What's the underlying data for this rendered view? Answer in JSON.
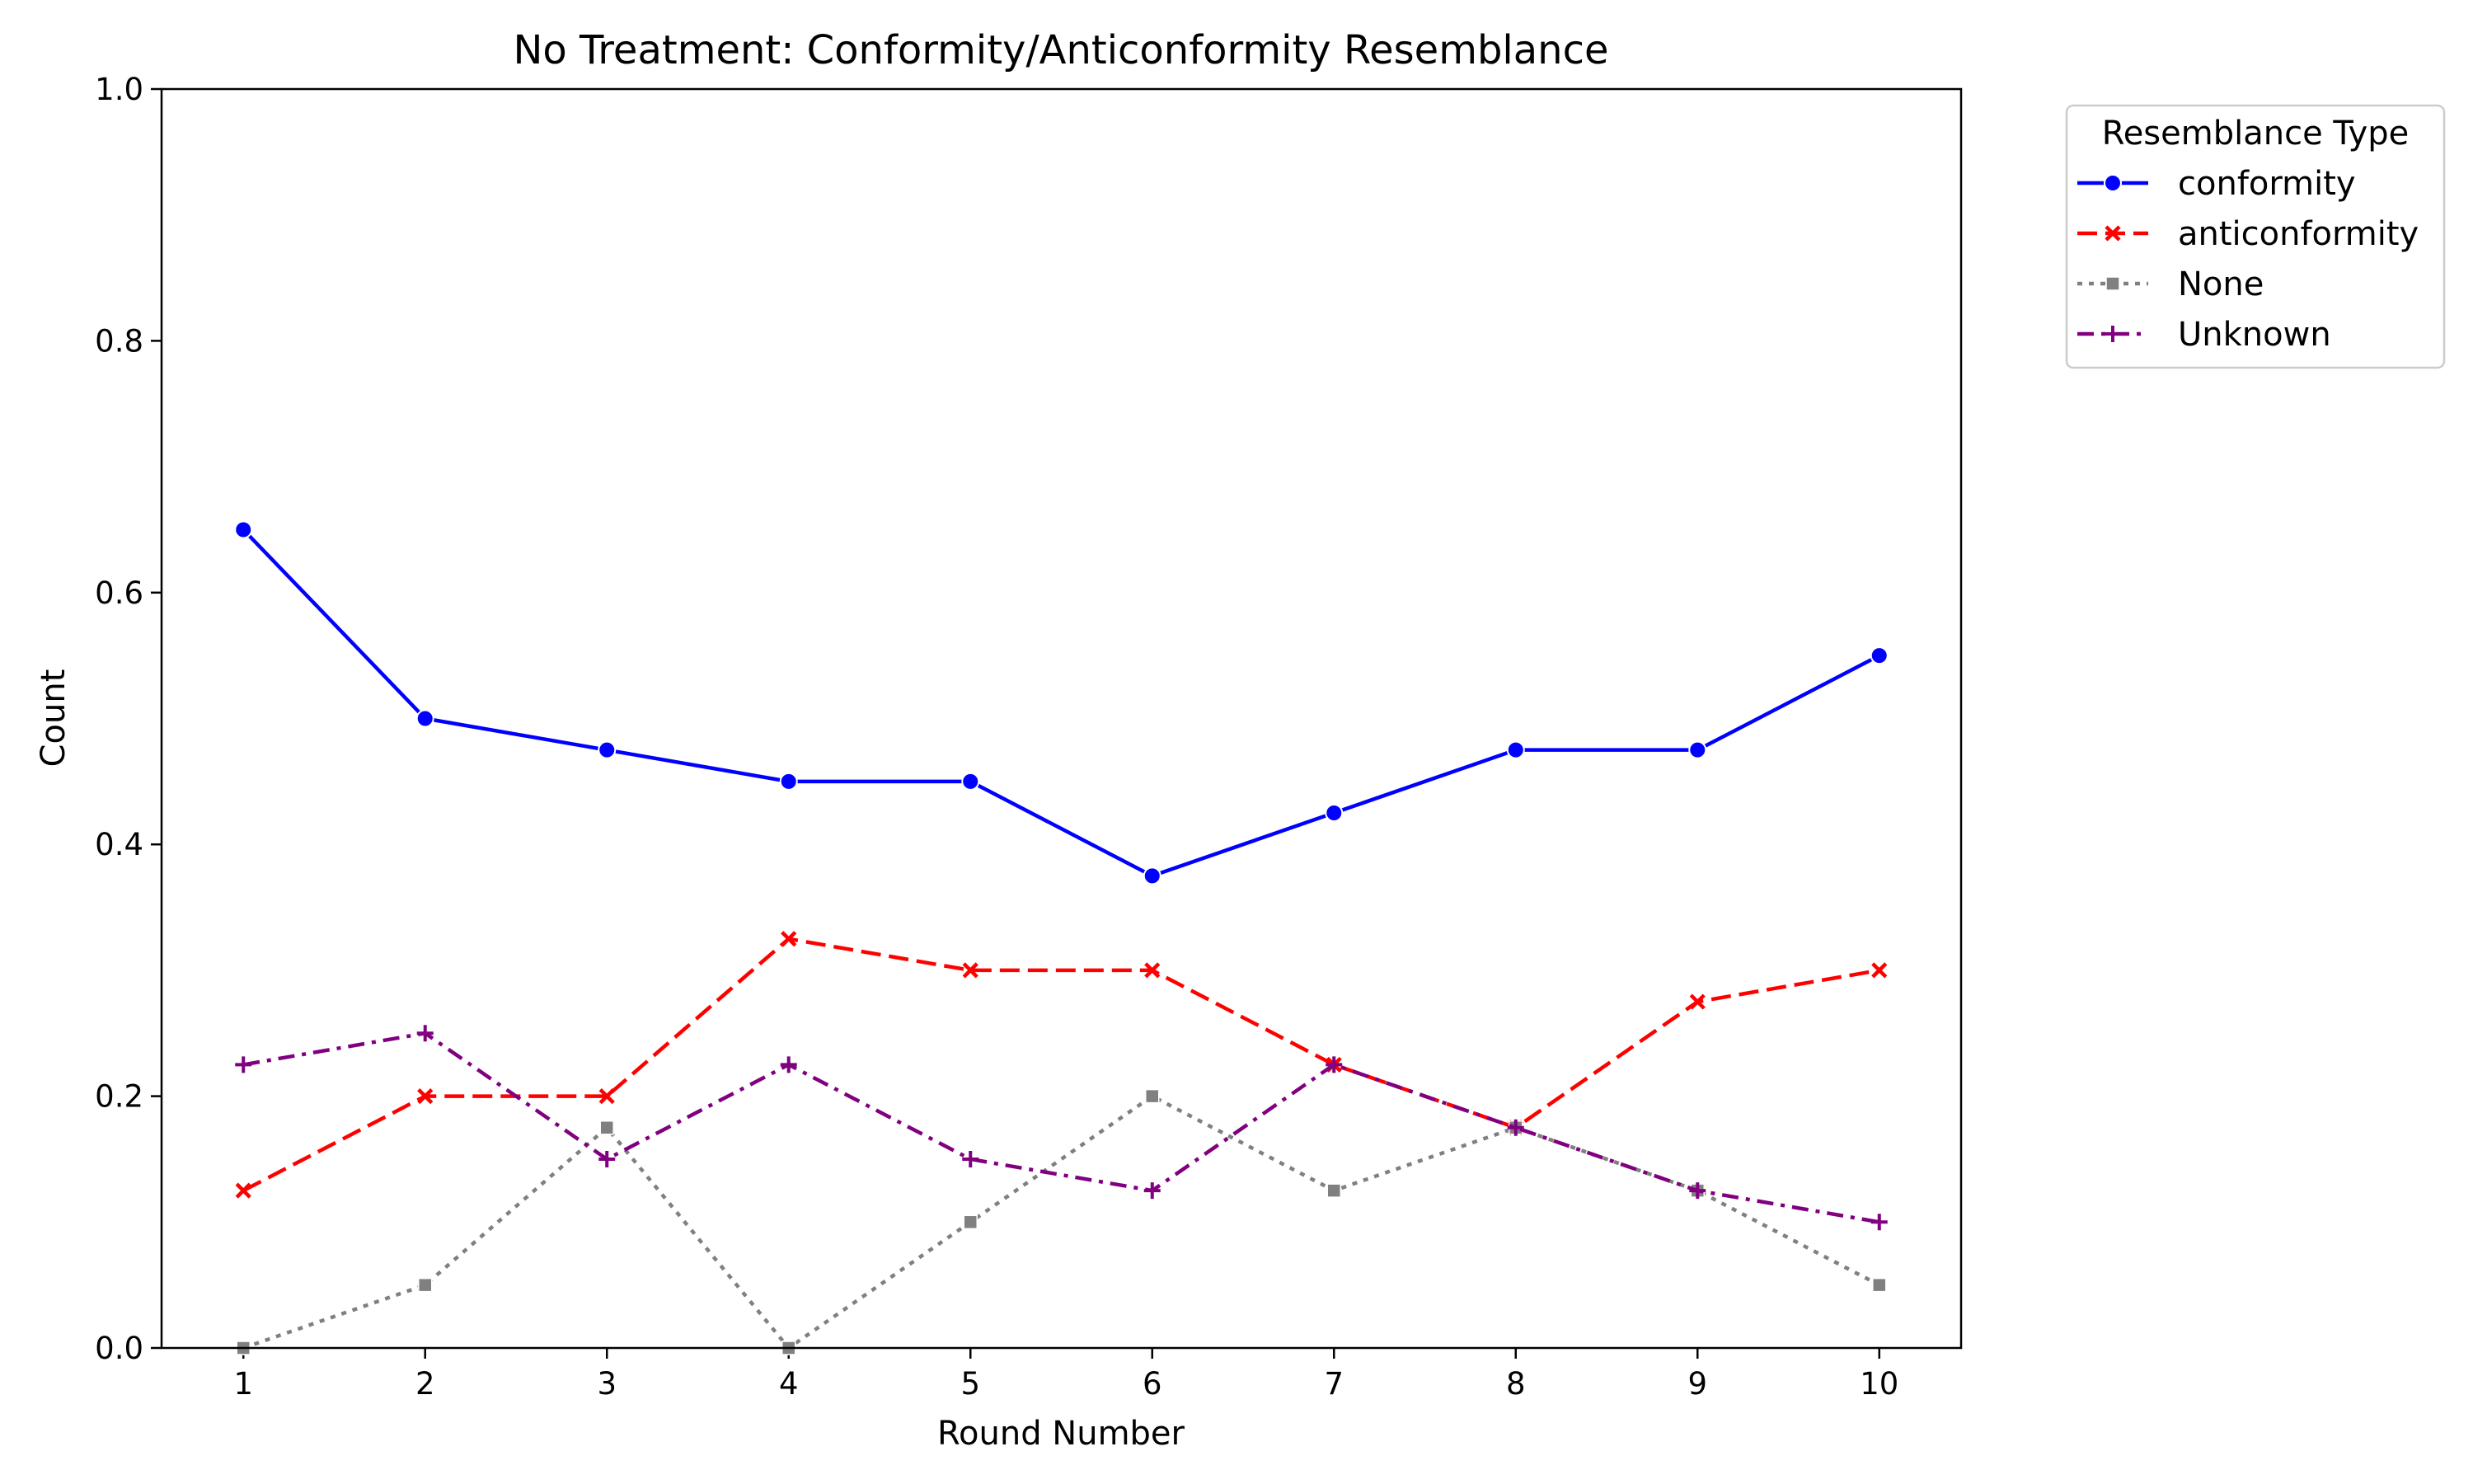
{
  "chart_data": {
    "type": "line",
    "title": "No Treatment: Conformity/Anticonformity Resemblance",
    "xlabel": "Round Number",
    "ylabel": "Count",
    "x": [
      1,
      2,
      3,
      4,
      5,
      6,
      7,
      8,
      9,
      10
    ],
    "xlim": [
      0.55,
      10.45
    ],
    "ylim": [
      0,
      1
    ],
    "yticks": [
      0.0,
      0.2,
      0.4,
      0.6,
      0.8,
      1.0
    ],
    "ytick_labels": [
      "0.0",
      "0.2",
      "0.4",
      "0.6",
      "0.8",
      "1.0"
    ],
    "xtick_labels": [
      "1",
      "2",
      "3",
      "4",
      "5",
      "6",
      "7",
      "8",
      "9",
      "10"
    ],
    "grid": false,
    "legend": {
      "title": "Resemblance Type",
      "placement": "outside-top-right"
    },
    "series": [
      {
        "name": "conformity",
        "color": "#0000ff",
        "dash": "solid",
        "marker": "circle",
        "values": [
          0.65,
          0.5,
          0.475,
          0.45,
          0.45,
          0.375,
          0.425,
          0.475,
          0.475,
          0.55
        ]
      },
      {
        "name": "anticonformity",
        "color": "#ff0000",
        "dash": "dashed",
        "marker": "x",
        "values": [
          0.125,
          0.2,
          0.2,
          0.325,
          0.3,
          0.3,
          0.225,
          0.175,
          0.275,
          0.3
        ]
      },
      {
        "name": "None",
        "color": "#808080",
        "dash": "dotted",
        "marker": "square",
        "values": [
          0.0,
          0.05,
          0.175,
          0.0,
          0.1,
          0.2,
          0.125,
          0.175,
          0.125,
          0.05
        ]
      },
      {
        "name": "Unknown",
        "color": "#800080",
        "dash": "dashdot",
        "marker": "plus",
        "values": [
          0.225,
          0.25,
          0.15,
          0.225,
          0.15,
          0.125,
          0.225,
          0.175,
          0.125,
          0.1
        ]
      }
    ]
  }
}
